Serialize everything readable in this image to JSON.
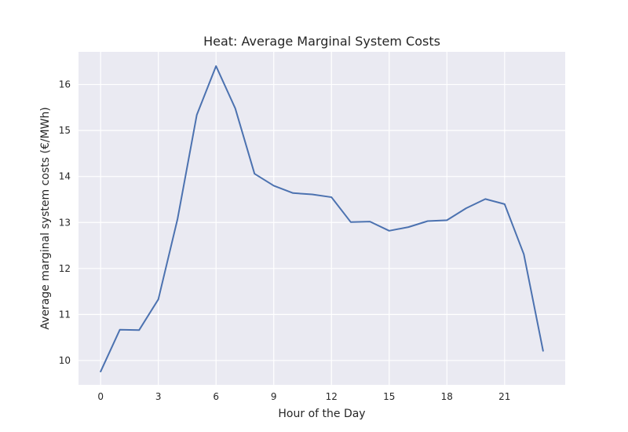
{
  "chart_data": {
    "type": "line",
    "title": "Heat: Average Marginal System Costs",
    "xlabel": "Hour of the Day",
    "ylabel": "Average marginal system costs (€/MWh)",
    "xlim": [
      -1.15,
      24.15
    ],
    "ylim": [
      9.47,
      16.71
    ],
    "xticks": [
      0,
      3,
      6,
      9,
      12,
      15,
      18,
      21
    ],
    "yticks": [
      10,
      11,
      12,
      13,
      14,
      15,
      16
    ],
    "grid": true,
    "legend": "none",
    "colors": {
      "line": "#4c72b0",
      "plot_bg": "#eaeaf2",
      "grid": "#ffffff"
    },
    "series": [
      {
        "x": [
          0,
          1,
          2,
          3,
          4,
          5,
          6,
          7,
          8,
          9,
          10,
          11,
          12,
          13,
          14,
          15,
          16,
          17,
          18,
          19,
          20,
          21,
          22,
          23
        ],
        "values": [
          9.76,
          10.67,
          10.66,
          11.33,
          13.08,
          15.34,
          16.4,
          15.48,
          14.06,
          13.8,
          13.64,
          13.61,
          13.55,
          13.01,
          13.02,
          12.82,
          12.9,
          13.03,
          13.05,
          13.31,
          13.51,
          13.4,
          12.31,
          10.21
        ]
      }
    ]
  }
}
